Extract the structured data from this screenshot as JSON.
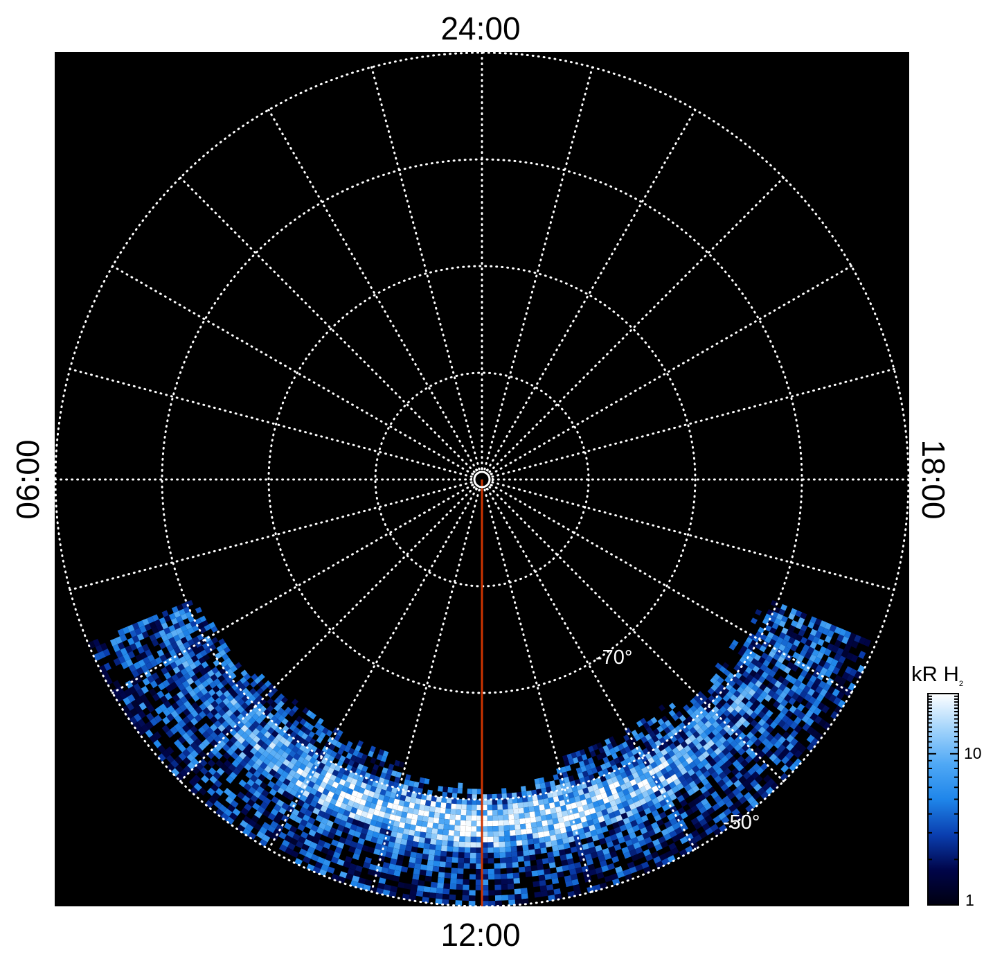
{
  "chart_data": {
    "type": "heatmap",
    "title": "",
    "projection": "polar",
    "local_time_labels": {
      "top": "24:00",
      "bottom": "12:00",
      "left": "06:00",
      "right": "18:00"
    },
    "latitude_labels": [
      "-70°",
      "-50°"
    ],
    "latitude_circles": [
      -89,
      -80,
      -70,
      -60,
      -50
    ],
    "meridian_step_hours": 1,
    "grid": true,
    "background_color": "#000000",
    "grid_color": "#ffffff",
    "highlight_meridian": {
      "local_time_hours": 12,
      "color": "#cc3300"
    },
    "emission": {
      "region": "dayside",
      "latitude_range": [
        -63,
        -50
      ],
      "local_time_range_hours": [
        7.5,
        16.5
      ],
      "peak_band_latitude": -58
    },
    "colorbar": {
      "label": "kR",
      "species": "H",
      "species_subscript": "2",
      "scale": "log",
      "range": [
        1,
        25
      ],
      "tick_labels": [
        "1",
        "10"
      ],
      "colors": [
        "#000010",
        "#00054a",
        "#0a3fb0",
        "#1f86ea",
        "#4fa8f5",
        "#a3d4fb",
        "#ffffff"
      ]
    }
  }
}
